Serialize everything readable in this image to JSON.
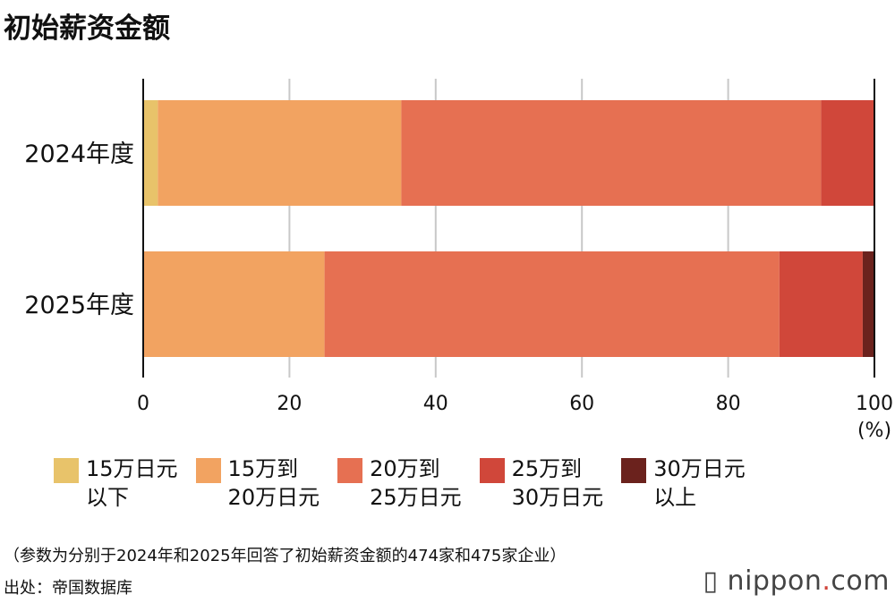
{
  "chart_data": {
    "type": "bar",
    "orientation": "horizontal",
    "stacked": true,
    "title": "初始薪资金额",
    "categories": [
      "2024年度",
      "2025年度"
    ],
    "series": [
      {
        "name": "15万日元\n以下",
        "values": [
          2.0,
          0
        ],
        "color": "#e8c36a"
      },
      {
        "name": "15万到\n20万日元",
        "values": [
          33.3,
          24.8
        ],
        "color": "#f2a361"
      },
      {
        "name": "20万到\n25万日元",
        "values": [
          57.4,
          62.2
        ],
        "color": "#e67052"
      },
      {
        "name": "25万到\n30万日元",
        "values": [
          7.3,
          11.4
        ],
        "color": "#d0473a"
      },
      {
        "name": "30万日元\n以上",
        "values": [
          0,
          1.6
        ],
        "color": "#6b221d"
      }
    ],
    "xlim": [
      0,
      100
    ],
    "xticks": [
      "0",
      "20",
      "40",
      "60",
      "80",
      "100"
    ],
    "xunit": "(%)",
    "grid": true,
    "legend": "bottom"
  },
  "footer": {
    "note": "（参数为分别于2024年和2025年回答了初始薪资金额的474家和475家企业）",
    "source": "出处：帝国数据库",
    "logo": "nippon.com"
  }
}
